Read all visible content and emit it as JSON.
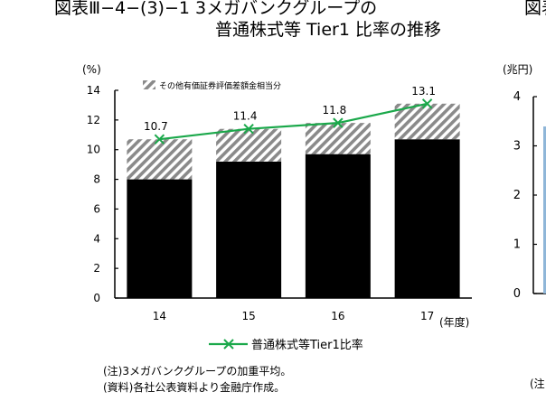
{
  "figure": {
    "title_line1": "図表Ⅲ−4−(3)−1  3メガバンクグループの",
    "title_line2": "普通株式等 Tier1 比率の推移",
    "right_title_fragment": "図表",
    "notes": [
      "(注)3メガバンクグループの加重平均。",
      "(資料)各社公表資料より金融庁作成。"
    ],
    "right_note_fragment": "(注"
  },
  "chart_data": [
    {
      "type": "bar",
      "ylabel": "(%)",
      "xlabel": "(年度)",
      "ylim": [
        0,
        14
      ],
      "yticks": [
        0,
        2,
        4,
        6,
        8,
        10,
        12,
        14
      ],
      "categories": [
        "14",
        "15",
        "16",
        "17"
      ],
      "stacked": true,
      "series": [
        {
          "name": "",
          "kind": "bar-solid",
          "color": "#000000",
          "values": [
            8.0,
            9.2,
            9.7,
            10.7
          ]
        },
        {
          "name": "その他有価証券評価差額金相当分",
          "kind": "bar-hatched",
          "values": [
            2.7,
            2.2,
            2.1,
            2.4
          ]
        },
        {
          "name": "普通株式等Tier1比率",
          "kind": "line",
          "color": "#1aa84a",
          "values": [
            10.7,
            11.4,
            11.8,
            13.1
          ]
        }
      ],
      "data_labels": [
        "10.7",
        "11.4",
        "11.8",
        "13.1"
      ],
      "legend_hatched": "その他有価証券評価差額金相当分",
      "legend_line": "普通株式等Tier1比率"
    },
    {
      "type": "bar",
      "partial": true,
      "ylabel": "(兆円)",
      "ylim": [
        0,
        4
      ],
      "yticks": [
        0,
        1,
        2,
        3,
        4
      ]
    }
  ]
}
